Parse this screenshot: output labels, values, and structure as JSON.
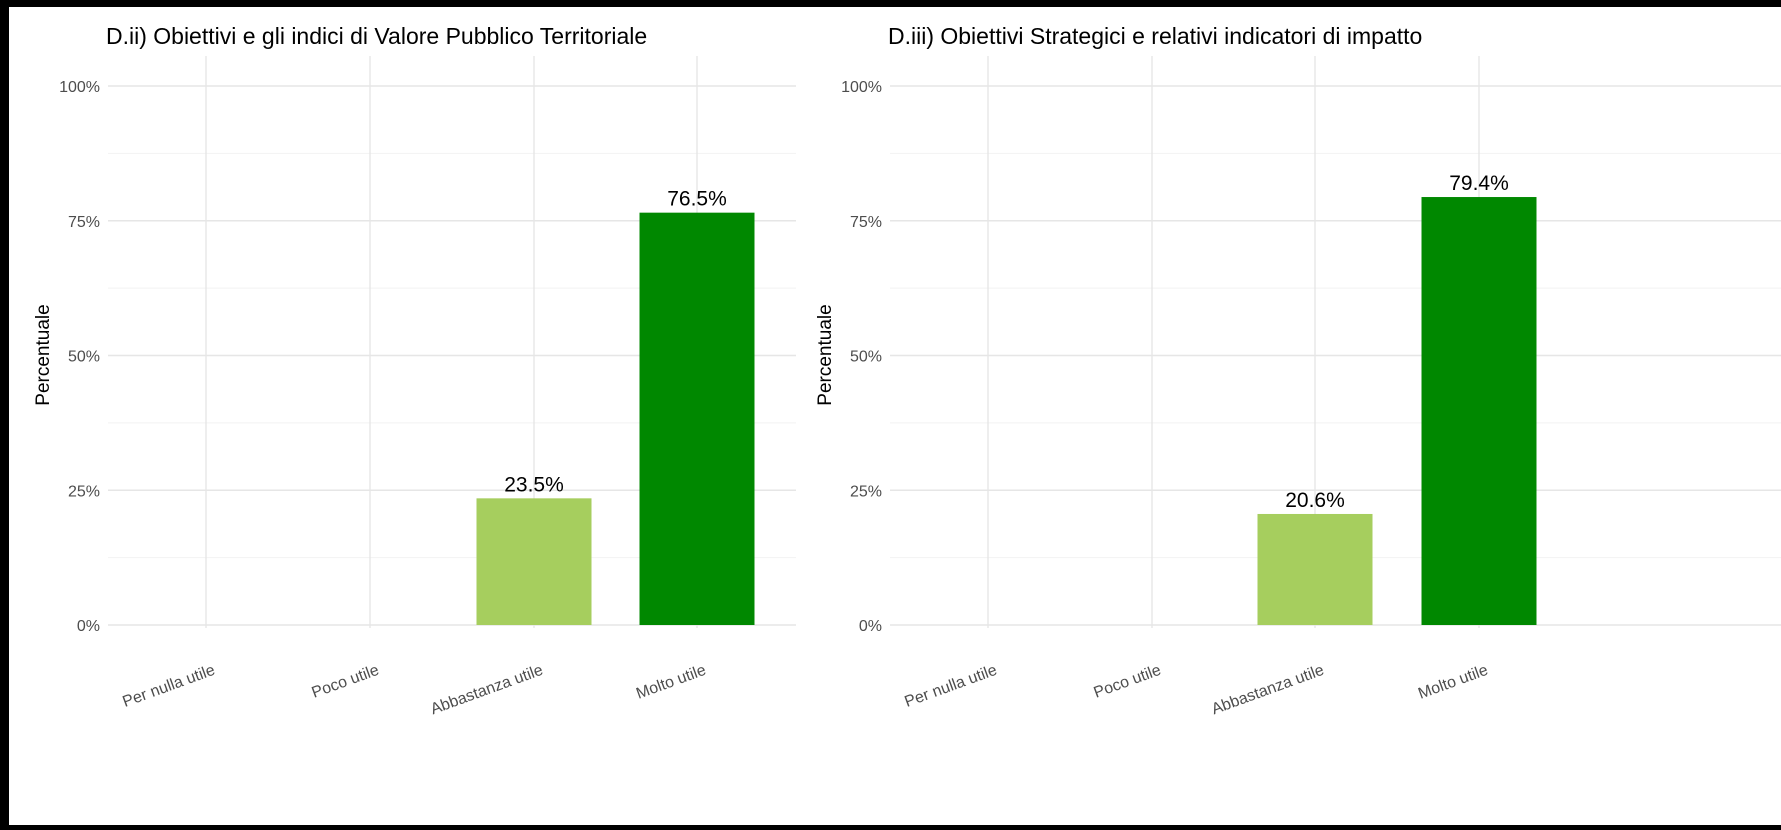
{
  "chart_data": [
    {
      "type": "bar",
      "title": "D.ii) Obiettivi e gli indici di Valore Pubblico Territoriale",
      "ylabel": "Percentuale",
      "xlabel": "",
      "categories": [
        "Per nulla utile",
        "Poco utile",
        "Abbastanza utile",
        "Molto utile"
      ],
      "values": [
        0,
        0,
        23.5,
        76.5
      ],
      "data_labels": [
        "",
        "",
        "23.5%",
        "76.5%"
      ],
      "colors": [
        "#A6CE5E",
        "#A6CE5E",
        "#A6CE5E",
        "#008800"
      ],
      "ylim": [
        0,
        100
      ],
      "yticks": [
        0,
        25,
        50,
        75,
        100
      ],
      "ytick_labels": [
        "0%",
        "25%",
        "50%",
        "75%",
        "100%"
      ],
      "grid": true,
      "legend": "none"
    },
    {
      "type": "bar",
      "title": "D.iii) Obiettivi Strategici e relativi indicatori di impatto",
      "ylabel": "Percentuale",
      "xlabel": "",
      "categories": [
        "Per nulla utile",
        "Poco utile",
        "Abbastanza utile",
        "Molto utile"
      ],
      "values": [
        0,
        0,
        20.6,
        79.4
      ],
      "data_labels": [
        "",
        "",
        "20.6%",
        "79.4%"
      ],
      "colors": [
        "#A6CE5E",
        "#A6CE5E",
        "#A6CE5E",
        "#008800"
      ],
      "ylim": [
        0,
        100
      ],
      "yticks": [
        0,
        25,
        50,
        75,
        100
      ],
      "ytick_labels": [
        "0%",
        "25%",
        "50%",
        "75%",
        "100%"
      ],
      "grid": true,
      "legend": "none"
    }
  ]
}
